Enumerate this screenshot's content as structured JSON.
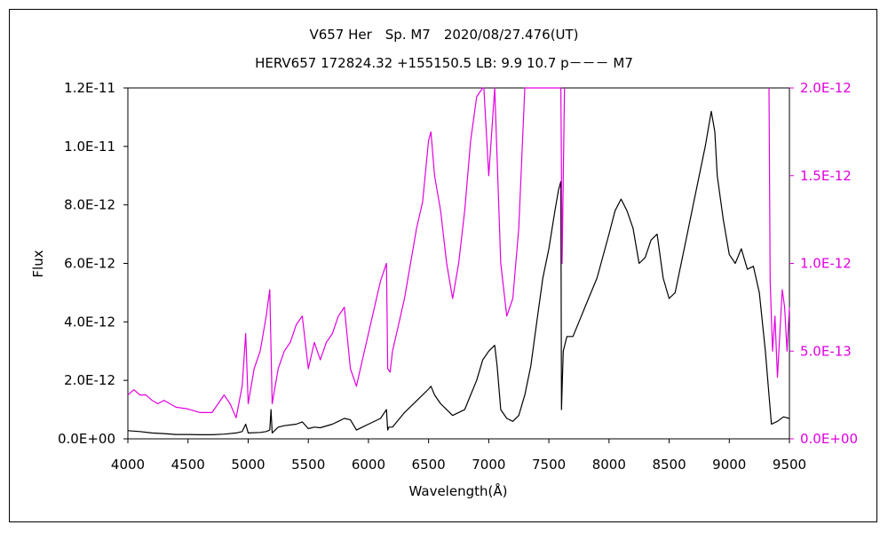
{
  "chart_data": {
    "type": "line",
    "title": "V657 Her　Sp. M7　2020/08/27.476(UT)",
    "subtitle": "HERV657 172824.32 +155150.5 LB: 9.9 10.7 p－－－ M7",
    "xlabel": "Wavelength(Å)",
    "ylabel": "Flux",
    "xlim": [
      4000,
      9500
    ],
    "ylim": [
      0,
      1.2e-11
    ],
    "y2lim": [
      0,
      2e-12
    ],
    "x_ticks": [
      "4000",
      "4500",
      "5000",
      "5500",
      "6000",
      "6500",
      "7000",
      "7500",
      "8000",
      "8500",
      "9000",
      "9500"
    ],
    "y_ticks": [
      "0.0E+00",
      "2.0E-12",
      "4.0E-12",
      "6.0E-12",
      "8.0E-12",
      "1.0E-11",
      "1.2E-11"
    ],
    "y2_ticks": [
      "0.0E+00",
      "5.0E-13",
      "1.0E-12",
      "1.5E-12",
      "2.0E-12"
    ],
    "grid": false,
    "colors": {
      "primary": "#000000",
      "secondary": "#e000e0"
    },
    "series": [
      {
        "axis": "left",
        "x": [
          4000,
          4100,
          4200,
          4300,
          4400,
          4500,
          4600,
          4700,
          4800,
          4900,
          4950,
          4980,
          5000,
          5100,
          5150,
          5180,
          5190,
          5200,
          5250,
          5300,
          5400,
          5450,
          5500,
          5550,
          5600,
          5700,
          5750,
          5800,
          5850,
          5900,
          5950,
          6000,
          6100,
          6150,
          6160,
          6170,
          6200,
          6300,
          6400,
          6500,
          6520,
          6550,
          6600,
          6650,
          6700,
          6800,
          6850,
          6900,
          6950,
          7000,
          7050,
          7070,
          7100,
          7150,
          7200,
          7250,
          7300,
          7350,
          7400,
          7450,
          7500,
          7550,
          7580,
          7600,
          7605,
          7620,
          7650,
          7700,
          7750,
          7800,
          7900,
          8000,
          8050,
          8100,
          8150,
          8200,
          8250,
          8300,
          8350,
          8400,
          8450,
          8500,
          8550,
          8600,
          8650,
          8700,
          8750,
          8800,
          8850,
          8880,
          8900,
          8950,
          9000,
          9050,
          9100,
          9150,
          9200,
          9250,
          9300,
          9350,
          9400,
          9450,
          9500
        ],
        "y": [
          2.8e-13,
          2.5e-13,
          2e-13,
          1.8e-13,
          1.5e-13,
          1.5e-13,
          1.4e-13,
          1.4e-13,
          1.6e-13,
          2e-13,
          2.5e-13,
          5e-13,
          2e-13,
          2.2e-13,
          2.5e-13,
          3e-13,
          1e-12,
          2e-13,
          4e-13,
          4.5e-13,
          5e-13,
          5.8e-13,
          3.5e-13,
          4e-13,
          3.8e-13,
          5e-13,
          6e-13,
          7e-13,
          6.5e-13,
          3e-13,
          4e-13,
          5e-13,
          7e-13,
          1e-12,
          3e-13,
          4e-13,
          4e-13,
          9e-13,
          1.3e-12,
          1.7e-12,
          1.8e-12,
          1.5e-12,
          1.2e-12,
          1e-12,
          8e-13,
          1e-12,
          1.5e-12,
          2e-12,
          2.7e-12,
          3e-12,
          3.2e-12,
          2.5e-12,
          1e-12,
          7e-13,
          6e-13,
          8e-13,
          1.5e-12,
          2.5e-12,
          4e-12,
          5.5e-12,
          6.5e-12,
          7.8e-12,
          8.5e-12,
          8.8e-12,
          1e-12,
          3e-12,
          3.5e-12,
          3.5e-12,
          4e-12,
          4.5e-12,
          5.5e-12,
          7e-12,
          7.8e-12,
          8.2e-12,
          7.8e-12,
          7.2e-12,
          6e-12,
          6.2e-12,
          6.8e-12,
          7e-12,
          5.5e-12,
          4.8e-12,
          5e-12,
          6e-12,
          7e-12,
          8e-12,
          9e-12,
          1e-11,
          1.12e-11,
          1.05e-11,
          9e-12,
          7.5e-12,
          6.3e-12,
          6e-12,
          6.5e-12,
          5.8e-12,
          5.9e-12,
          5e-12,
          3e-12,
          5e-13,
          6e-13,
          7.5e-13,
          7e-13
        ]
      },
      {
        "axis": "right",
        "x": [
          4000,
          4050,
          4100,
          4150,
          4200,
          4250,
          4300,
          4400,
          4500,
          4600,
          4700,
          4750,
          4800,
          4850,
          4900,
          4950,
          4980,
          5000,
          5050,
          5100,
          5150,
          5180,
          5200,
          5250,
          5300,
          5350,
          5400,
          5450,
          5500,
          5550,
          5600,
          5650,
          5700,
          5750,
          5800,
          5850,
          5900,
          5950,
          6000,
          6050,
          6100,
          6150,
          6160,
          6180,
          6200,
          6250,
          6300,
          6350,
          6400,
          6450,
          6500,
          6520,
          6550,
          6600,
          6650,
          6700,
          6750,
          6800,
          6850,
          6900,
          6950,
          6960,
          7000,
          7050,
          7100,
          7150,
          7200,
          7250,
          7300,
          7600,
          7610,
          7630
        ],
        "y": [
          2.5e-13,
          2.8e-13,
          2.5e-13,
          2.5e-13,
          2.2e-13,
          2e-13,
          2.2e-13,
          1.8e-13,
          1.7e-13,
          1.5e-13,
          1.5e-13,
          2e-13,
          2.5e-13,
          2e-13,
          1.2e-13,
          3e-13,
          6e-13,
          2e-13,
          4e-13,
          5e-13,
          7e-13,
          8.5e-13,
          2e-13,
          4e-13,
          5e-13,
          5.5e-13,
          6.5e-13,
          7e-13,
          4e-13,
          5.5e-13,
          4.5e-13,
          5.5e-13,
          6e-13,
          7e-13,
          7.5e-13,
          4e-13,
          3e-13,
          4.5e-13,
          6e-13,
          7.5e-13,
          9e-13,
          1e-12,
          4e-13,
          3.8e-13,
          5e-13,
          6.5e-13,
          8e-13,
          1e-12,
          1.2e-12,
          1.35e-12,
          1.7e-12,
          1.75e-12,
          1.5e-12,
          1.3e-12,
          1e-12,
          8e-13,
          1e-12,
          1.3e-12,
          1.7e-12,
          1.95e-12,
          2e-12,
          2e-12,
          1.5e-12,
          2e-12,
          1e-12,
          7e-13,
          8e-13,
          1.2e-12,
          2e-12,
          2e-12,
          1e-12,
          2e-12
        ]
      },
      {
        "axis": "right",
        "x": [
          9330,
          9340,
          9360,
          9380,
          9400,
          9420,
          9440,
          9460,
          9480,
          9500
        ],
        "y": [
          2e-12,
          9e-13,
          5e-13,
          7e-13,
          3.5e-13,
          6e-13,
          8.5e-13,
          7.5e-13,
          5e-13,
          7.5e-13
        ]
      }
    ]
  }
}
